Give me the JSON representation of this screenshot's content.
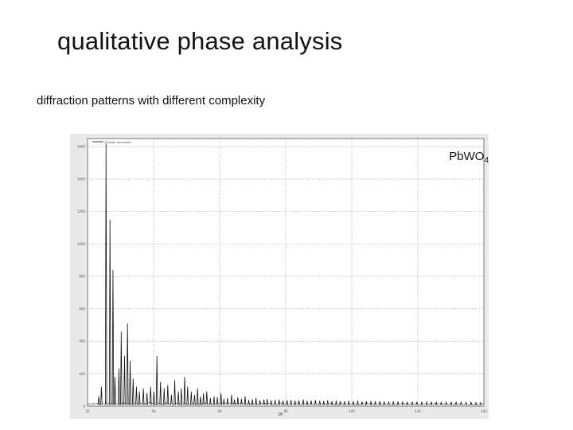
{
  "slide": {
    "title": "qualitative phase analysis",
    "subtitle": "diffraction patterns with different complexity"
  },
  "chart_data": {
    "type": "line",
    "legend": "Powder Simulation",
    "annotation": {
      "base": "PbWO",
      "subscript": "4"
    },
    "xlabel": "2θ",
    "ylabel": "",
    "xlim": [
      20,
      140
    ],
    "ylim": [
      0,
      1650
    ],
    "x_ticks": [
      20,
      40,
      60,
      80,
      100,
      120,
      140
    ],
    "y_ticks": [
      0,
      200,
      400,
      600,
      800,
      1000,
      1200,
      1400,
      1600
    ],
    "grid": true,
    "colors": {
      "line": "#111111",
      "grid": "#9a9a9a",
      "frame": "#777777",
      "plot_bg": "#ffffff",
      "outer_bg": "#e9e9e9"
    },
    "baseline": 8,
    "series": [
      {
        "x": [
          23.4,
          24.2,
          25.6,
          26.8,
          27.7,
          28.3,
          29.5,
          30.2,
          31.2,
          32.1,
          32.9,
          33.8,
          34.8,
          35.7,
          36.9,
          38.0,
          39.1,
          40.1,
          41.0,
          42.1,
          43.2,
          44.3,
          45.4,
          46.4,
          47.5,
          48.4,
          49.4,
          50.3,
          51.4,
          52.4,
          53.3,
          54.2,
          55.1,
          56.1,
          57.2,
          58.3,
          59.3,
          60.4,
          61.3,
          62.4,
          63.6,
          64.5,
          65.5,
          66.6,
          67.7,
          68.8,
          69.9,
          71.0,
          72.2,
          73.4,
          74.4,
          75.6,
          76.8,
          78.0,
          79.2,
          80.4,
          81.6,
          82.8,
          84.0,
          85.3,
          86.5,
          87.7,
          89.0,
          90.3,
          91.5,
          92.7,
          94.0,
          95.3,
          96.5,
          97.8,
          99.1,
          100.5,
          101.8,
          103.1,
          104.4,
          105.8,
          107.1,
          108.5,
          109.8,
          111.2,
          112.6,
          114.0,
          115.4,
          116.8,
          118.3,
          119.7,
          121.2,
          122.7,
          124.1,
          125.6,
          127.1,
          128.6,
          130.1,
          131.6,
          133.1,
          134.6,
          136.1,
          137.6,
          139.0
        ],
        "y": [
          62,
          120,
          1620,
          1150,
          840,
          180,
          230,
          460,
          310,
          510,
          280,
          170,
          120,
          90,
          110,
          80,
          120,
          90,
          310,
          150,
          110,
          130,
          70,
          160,
          90,
          110,
          180,
          120,
          90,
          70,
          110,
          60,
          80,
          90,
          50,
          60,
          55,
          80,
          45,
          50,
          70,
          40,
          55,
          45,
          60,
          38,
          42,
          50,
          36,
          40,
          44,
          35,
          38,
          40,
          34,
          36,
          38,
          33,
          35,
          40,
          32,
          34,
          36,
          33,
          31,
          35,
          30,
          33,
          31,
          29,
          32,
          30,
          33,
          28,
          30,
          31,
          29,
          30,
          28,
          27,
          29,
          28,
          27,
          26,
          28,
          26,
          27,
          25,
          27,
          26,
          25,
          24,
          26,
          25,
          24,
          23,
          24,
          22,
          22
        ]
      }
    ]
  }
}
